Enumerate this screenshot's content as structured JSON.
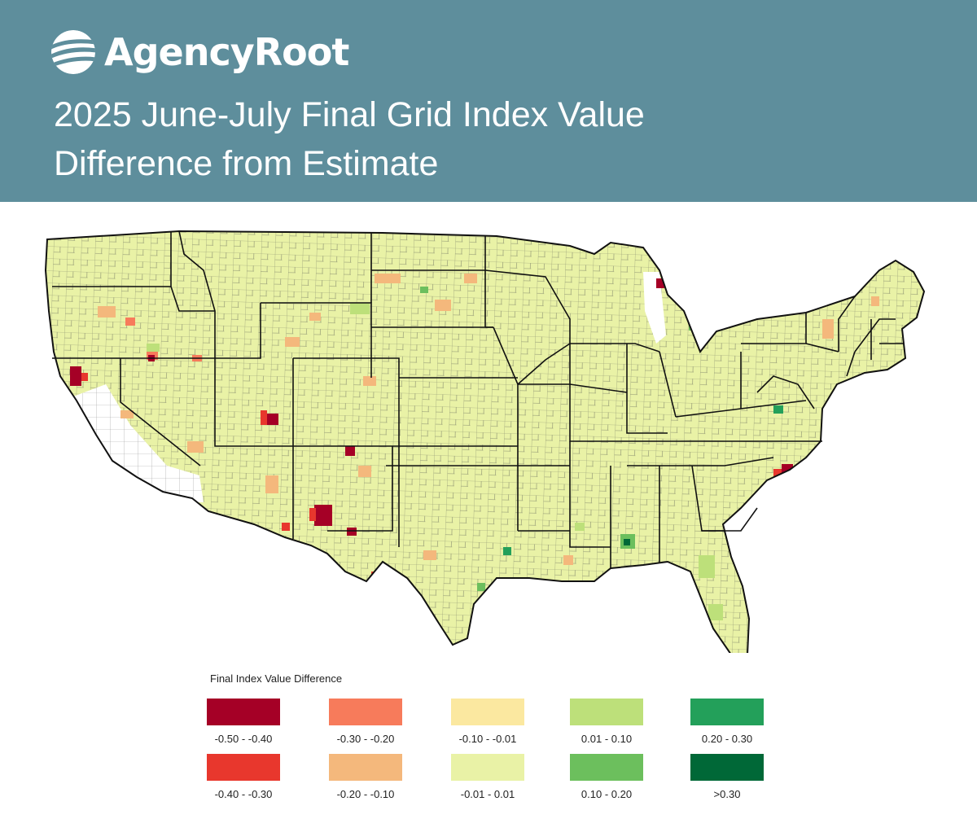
{
  "header": {
    "brand": "AgencyRoot",
    "title_line1": "2025 June-July Final Grid Index Value",
    "title_line2": "Difference from Estimate",
    "logo_icon": "globe-stripes-icon"
  },
  "colors": {
    "header_bg": "#5e8e9c",
    "land_base": "#e9f2a6",
    "county_line": "#8a8f70",
    "state_line": "#111111",
    "excluded_land": "#ffffff"
  },
  "legend": {
    "title": "Final Index Value Difference",
    "items": [
      {
        "label": "-0.50 - -0.40",
        "color": "#a50026"
      },
      {
        "label": "-0.40 - -0.30",
        "color": "#e8372d"
      },
      {
        "label": "-0.30 - -0.20",
        "color": "#f77b5b"
      },
      {
        "label": "-0.20 - -0.10",
        "color": "#f4b87c"
      },
      {
        "label": "-0.10 - -0.01",
        "color": "#fbe8a0"
      },
      {
        "label": "-0.01 - 0.01",
        "color": "#e9f2a6"
      },
      {
        "label": "0.01 - 0.10",
        "color": "#bde07a"
      },
      {
        "label": "0.10 - 0.20",
        "color": "#6cbf5d"
      },
      {
        "label": "0.20 - 0.30",
        "color": "#23a05a"
      },
      {
        "label": ">0.30",
        "color": "#006837"
      }
    ]
  }
}
